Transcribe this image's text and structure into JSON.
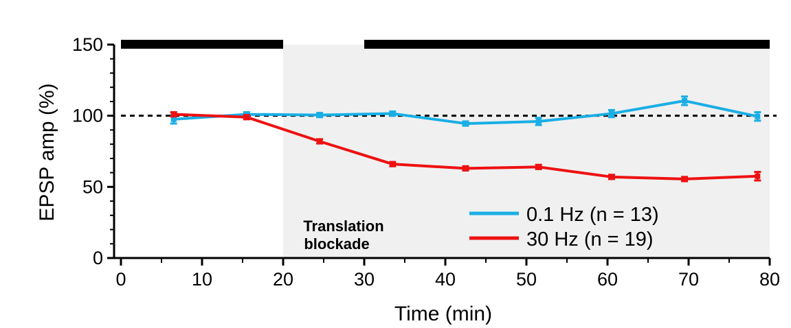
{
  "chart_data": {
    "type": "line",
    "xlabel": "Time (min)",
    "ylabel": "EPSP amp (%)",
    "xlim": [
      0,
      80
    ],
    "ylim": [
      0,
      150
    ],
    "x_ticks": [
      0,
      10,
      20,
      30,
      40,
      50,
      60,
      70,
      80
    ],
    "y_ticks": [
      0,
      50,
      100,
      150
    ],
    "x_tick_labels": [
      "0",
      "10",
      "20",
      "30",
      "40",
      "50",
      "60",
      "70",
      "80"
    ],
    "y_tick_labels": [
      "0",
      "50",
      "100",
      "150"
    ],
    "reference_line": {
      "y": 100,
      "style": "dashed"
    },
    "shaded_region": {
      "x_start": 20,
      "x_end": 80,
      "label_line1": "Translation",
      "label_line2": "blockade"
    },
    "bars": [
      {
        "x_start": 0,
        "x_end": 20
      },
      {
        "x_start": 30,
        "x_end": 80
      }
    ],
    "series": [
      {
        "name": "0.1 Hz (n = 13)",
        "color": "#1aaee5",
        "x": [
          6.5,
          15.5,
          24.5,
          33.5,
          42.5,
          51.5,
          60.5,
          69.5,
          78.5
        ],
        "y": [
          97.5,
          101,
          100.5,
          101.5,
          94.5,
          96,
          101.5,
          110.5,
          99.5
        ],
        "err": [
          3,
          1.5,
          1.5,
          1.5,
          1.5,
          2.5,
          2.5,
          3,
          3
        ]
      },
      {
        "name": "30 Hz (n = 19)",
        "color": "#ee1111",
        "x": [
          6.5,
          15.5,
          24.5,
          33.5,
          42.5,
          51.5,
          60.5,
          69.5,
          78.5
        ],
        "y": [
          101,
          99,
          82,
          66,
          63,
          64,
          57,
          55.5,
          57.5
        ],
        "err": [
          1.5,
          1.5,
          1.5,
          1.5,
          1.5,
          1.5,
          1.5,
          1.5,
          3
        ]
      }
    ],
    "legend": {
      "position": "bottom-right"
    }
  }
}
